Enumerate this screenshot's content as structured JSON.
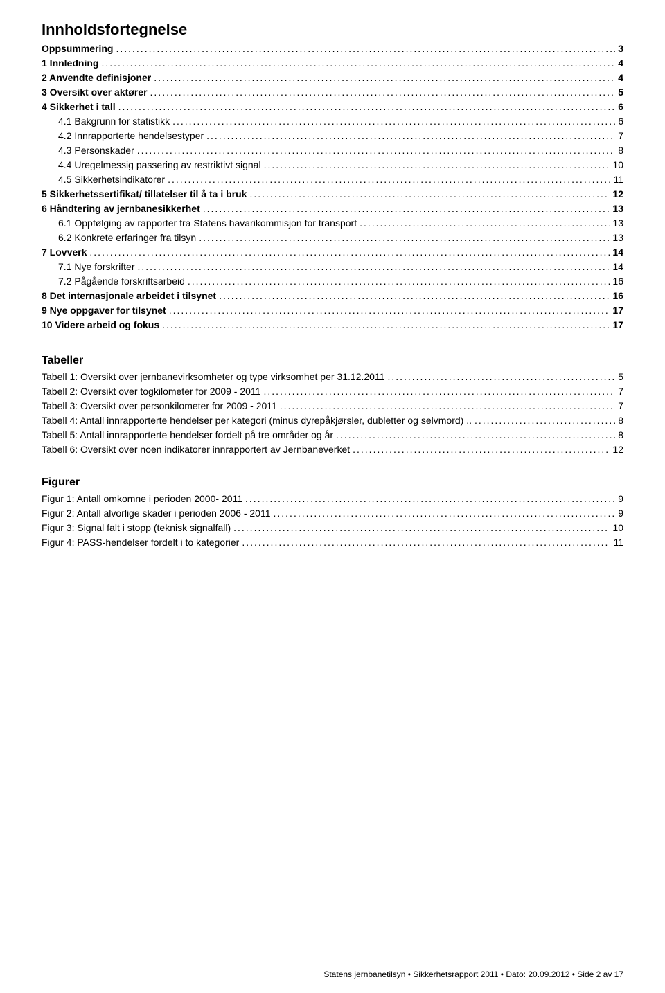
{
  "page_title": "Innholdsfortegnelse",
  "toc": [
    {
      "label": "Oppsummering",
      "page": "3",
      "bold": true,
      "indent": 0
    },
    {
      "label": "1 Innledning",
      "page": "4",
      "bold": true,
      "indent": 0
    },
    {
      "label": "2 Anvendte definisjoner",
      "page": "4",
      "bold": true,
      "indent": 0
    },
    {
      "label": "3 Oversikt over aktører",
      "page": "5",
      "bold": true,
      "indent": 0
    },
    {
      "label": "4 Sikkerhet i tall",
      "page": "6",
      "bold": true,
      "indent": 0
    },
    {
      "label": "4.1 Bakgrunn for statistikk",
      "page": "6",
      "bold": false,
      "indent": 1
    },
    {
      "label": "4.2 Innrapporterte hendelsestyper",
      "page": "7",
      "bold": false,
      "indent": 1
    },
    {
      "label": "4.3 Personskader",
      "page": "8",
      "bold": false,
      "indent": 1
    },
    {
      "label": "4.4 Uregelmessig passering av restriktivt signal",
      "page": "10",
      "bold": false,
      "indent": 1
    },
    {
      "label": "4.5 Sikkerhetsindikatorer",
      "page": "11",
      "bold": false,
      "indent": 1
    },
    {
      "label": "5 Sikkerhetssertifikat/ tillatelser til å ta i bruk",
      "page": "12",
      "bold": true,
      "indent": 0
    },
    {
      "label": "6 Håndtering av jernbanesikkerhet",
      "page": "13",
      "bold": true,
      "indent": 0
    },
    {
      "label": "6.1 Oppfølging av rapporter fra Statens havarikommisjon for transport",
      "page": "13",
      "bold": false,
      "indent": 1
    },
    {
      "label": "6.2 Konkrete erfaringer fra tilsyn",
      "page": "13",
      "bold": false,
      "indent": 1
    },
    {
      "label": "7 Lovverk",
      "page": "14",
      "bold": true,
      "indent": 0
    },
    {
      "label": "7.1 Nye forskrifter",
      "page": "14",
      "bold": false,
      "indent": 1
    },
    {
      "label": "7.2 Pågående forskriftsarbeid",
      "page": "16",
      "bold": false,
      "indent": 1
    },
    {
      "label": "8 Det internasjonale arbeidet i tilsynet",
      "page": "16",
      "bold": true,
      "indent": 0
    },
    {
      "label": "9 Nye oppgaver for tilsynet",
      "page": "17",
      "bold": true,
      "indent": 0
    },
    {
      "label": "10 Videre arbeid og fokus",
      "page": "17",
      "bold": true,
      "indent": 0
    }
  ],
  "tables_heading": "Tabeller",
  "tables": [
    {
      "label": "Tabell 1: Oversikt over jernbanevirksomheter og type virksomhet per 31.12.2011",
      "page": "5"
    },
    {
      "label": "Tabell 2: Oversikt over togkilometer for 2009 - 2011",
      "page": "7"
    },
    {
      "label": "Tabell 3: Oversikt over personkilometer for 2009 - 2011",
      "page": "7"
    },
    {
      "label": "Tabell 4: Antall innrapporterte hendelser per kategori (minus dyrepåkjørsler, dubletter og selvmord) ..",
      "page": "8"
    },
    {
      "label": "Tabell 5: Antall innrapporterte hendelser fordelt på tre områder og år",
      "page": "8"
    },
    {
      "label": "Tabell 6: Oversikt over noen indikatorer innrapportert av Jernbaneverket",
      "page": "12"
    }
  ],
  "figures_heading": "Figurer",
  "figures": [
    {
      "label": "Figur 1: Antall omkomne i perioden 2000- 2011",
      "page": "9"
    },
    {
      "label": "Figur 2: Antall alvorlige skader i perioden 2006 - 2011",
      "page": "9"
    },
    {
      "label": "Figur 3: Signal falt i stopp (teknisk signalfall)",
      "page": "10"
    },
    {
      "label": "Figur 4: PASS-hendelser fordelt i to kategorier",
      "page": "11"
    }
  ],
  "footer": "Statens jernbanetilsyn • Sikkerhetsrapport 2011 • Dato: 20.09.2012 • Side 2 av 17"
}
